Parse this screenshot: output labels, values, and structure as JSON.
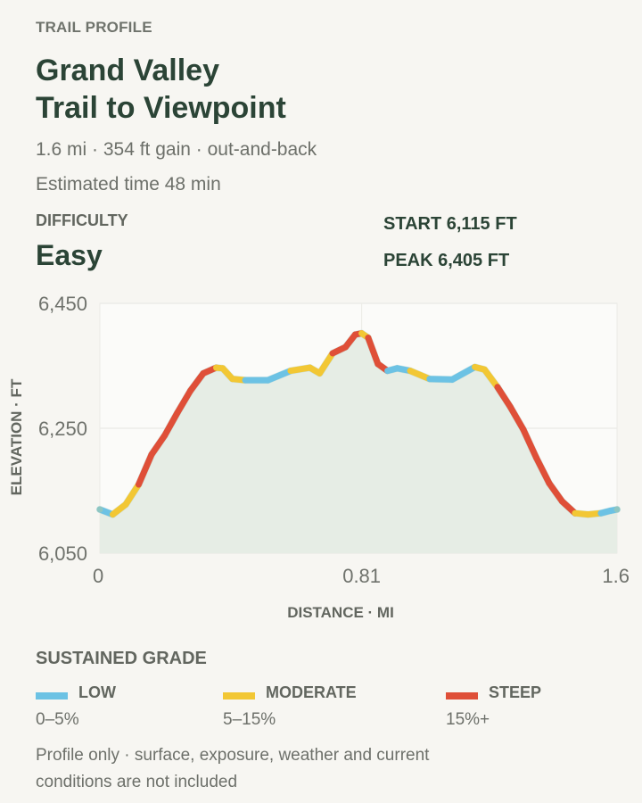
{
  "header": {
    "eyebrow": "TRAIL PROFILE",
    "title_line1": "Grand Valley",
    "title_line2": "Trail to Viewpoint",
    "summary": "1.6 mi · 354 ft gain · out-and-back",
    "estimated_time": "Estimated time 48 min"
  },
  "difficulty": {
    "label": "DIFFICULTY",
    "value": "Easy"
  },
  "stats": {
    "start": "START 6,115 FT",
    "peak": "PEAK 6,405 FT"
  },
  "chart_data": {
    "type": "line",
    "title": "",
    "xlabel": "DISTANCE · MI",
    "ylabel": "ELEVATION · FT",
    "xlim": [
      0,
      1.6
    ],
    "ylim": [
      6050,
      6450
    ],
    "x_ticks": [
      0,
      0.81,
      1.6
    ],
    "x_tick_labels": [
      "0",
      "0.81",
      "1.6"
    ],
    "y_ticks": [
      6050,
      6250,
      6450
    ],
    "y_tick_labels": [
      "6,050",
      "6,250",
      "6,450"
    ],
    "grid": true,
    "area_fill": true,
    "x": [
      0,
      0.04,
      0.08,
      0.12,
      0.16,
      0.2,
      0.24,
      0.28,
      0.32,
      0.36,
      0.38,
      0.41,
      0.45,
      0.52,
      0.59,
      0.65,
      0.68,
      0.72,
      0.76,
      0.79,
      0.81,
      0.83,
      0.86,
      0.89,
      0.92,
      0.96,
      1.02,
      1.09,
      1.16,
      1.19,
      1.23,
      1.27,
      1.31,
      1.35,
      1.39,
      1.43,
      1.47,
      1.51,
      1.55,
      1.58,
      1.6
    ],
    "y": [
      6120,
      6112,
      6128,
      6160,
      6208,
      6238,
      6275,
      6310,
      6338,
      6347,
      6346,
      6329,
      6327,
      6327,
      6342,
      6347,
      6338,
      6370,
      6380,
      6400,
      6402,
      6395,
      6353,
      6342,
      6346,
      6342,
      6329,
      6328,
      6348,
      6344,
      6316,
      6284,
      6248,
      6203,
      6162,
      6133,
      6114,
      6112,
      6114,
      6118,
      6120
    ],
    "grade": [
      "low",
      "moderate",
      "moderate",
      "steep",
      "steep",
      "steep",
      "steep",
      "steep",
      "steep",
      "moderate",
      "moderate",
      "moderate",
      "low",
      "low",
      "moderate",
      "moderate",
      "moderate",
      "steep",
      "steep",
      "steep",
      "moderate",
      "steep",
      "steep",
      "low",
      "low",
      "moderate",
      "low",
      "low",
      "moderate",
      "moderate",
      "steep",
      "steep",
      "steep",
      "steep",
      "steep",
      "steep",
      "moderate",
      "moderate",
      "low",
      "low",
      "low"
    ],
    "grade_colors": {
      "low": "#6cc2e4",
      "moderate": "#f2c734",
      "steep": "#df4f38"
    },
    "fill_color": "#e6ede5"
  },
  "legend": {
    "title": "SUSTAINED GRADE",
    "items": [
      {
        "name": "LOW",
        "range": "0–5%",
        "color": "#6cc2e4"
      },
      {
        "name": "MODERATE",
        "range": "5–15%",
        "color": "#f2c734"
      },
      {
        "name": "STEEP",
        "range": "15%+",
        "color": "#df4f38"
      }
    ]
  },
  "note": "Profile only · surface, exposure, weather and current conditions are not included"
}
